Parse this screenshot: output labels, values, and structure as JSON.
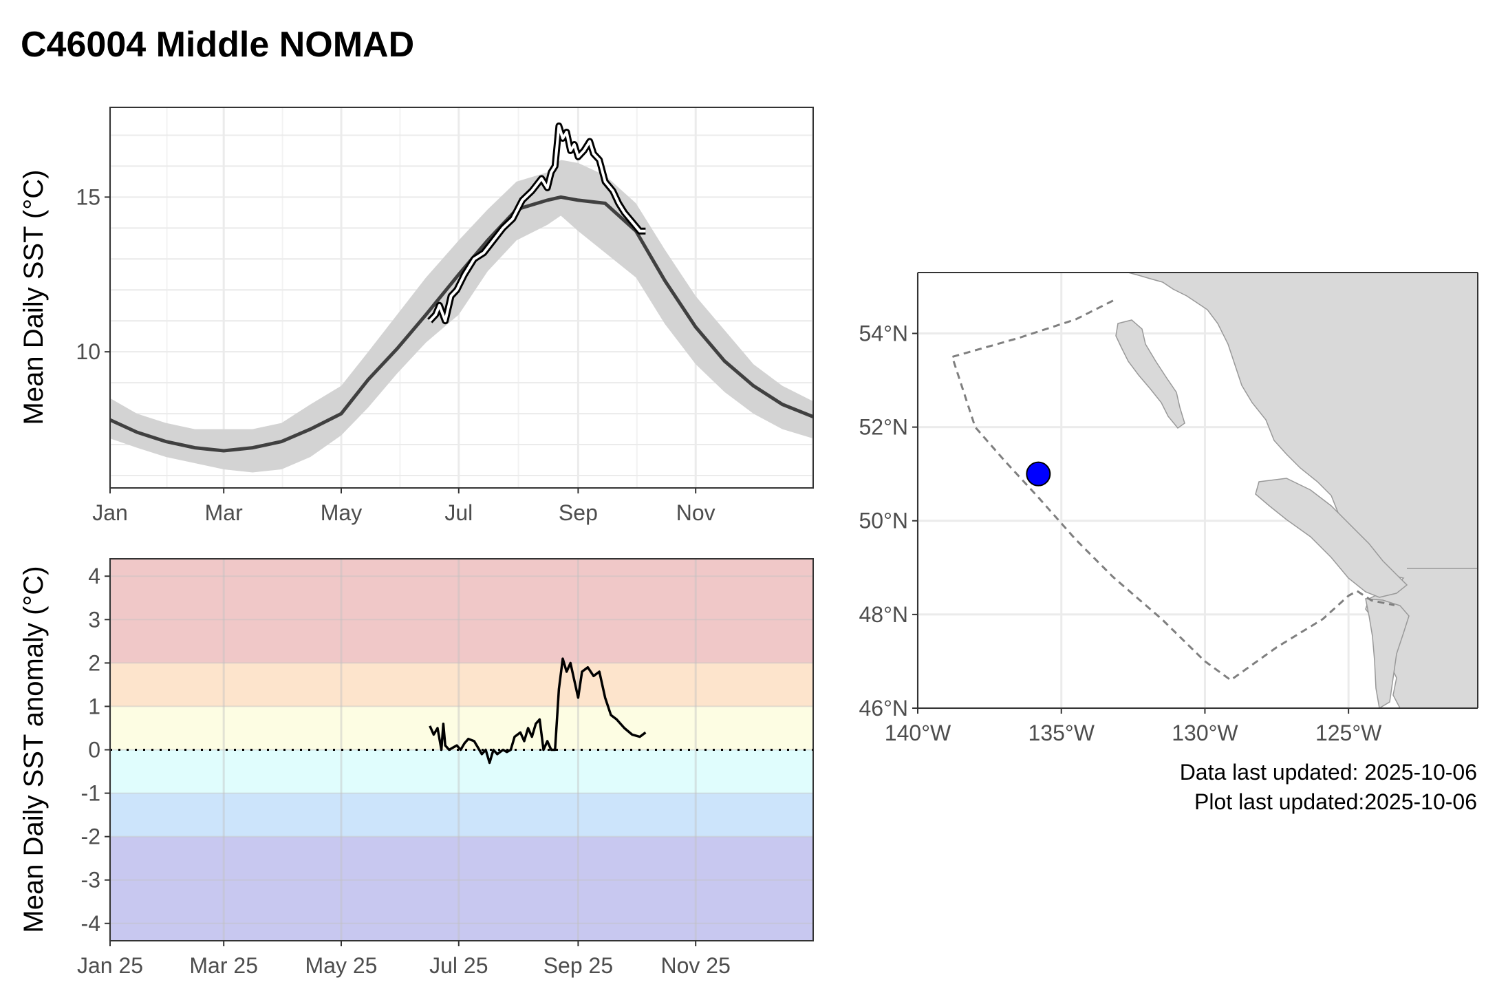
{
  "title": "C46004 Middle NOMAD",
  "notes": {
    "data_updated": "Data last updated: 2025-10-06",
    "plot_updated": "Plot last updated:2025-10-06"
  },
  "colors": {
    "climatology_line": "#404040",
    "climatology_band": "#d3d3d3",
    "current_line": "#000000",
    "current_halo": "#ffffff",
    "station_marker": "#0000ff",
    "land": "#d9d9d9",
    "boundary": "#7f7f7f",
    "anomaly_bands": [
      "#c8c8f0",
      "#cce4fb",
      "#e0fdfd",
      "#fdfde3",
      "#fde4cc",
      "#f0c8c8"
    ]
  },
  "chart_data": [
    {
      "type": "line",
      "ylabel": "Mean Daily SST (°C)",
      "xlabel": "",
      "x_ticks": [
        "Jan",
        "Mar",
        "May",
        "Jul",
        "Sep",
        "Nov"
      ],
      "x_tick_days": [
        1,
        60,
        121,
        182,
        244,
        305
      ],
      "y_ticks": [
        10,
        15
      ],
      "xlim": [
        1,
        366
      ],
      "ylim": [
        5.6,
        17.9
      ],
      "grid": true,
      "series": [
        {
          "role": "climatology_mean",
          "x": [
            1,
            15,
            30,
            45,
            60,
            75,
            90,
            105,
            121,
            135,
            150,
            165,
            182,
            197,
            212,
            228,
            235,
            244,
            258,
            274,
            289,
            305,
            320,
            335,
            350,
            366
          ],
          "y": [
            7.8,
            7.4,
            7.1,
            6.9,
            6.8,
            6.9,
            7.1,
            7.5,
            8.0,
            9.1,
            10.1,
            11.2,
            12.5,
            13.6,
            14.6,
            14.9,
            15.0,
            14.9,
            14.8,
            13.9,
            12.3,
            10.8,
            9.7,
            8.9,
            8.3,
            7.9
          ]
        },
        {
          "role": "climatology_band_upper",
          "x": [
            1,
            15,
            30,
            45,
            60,
            75,
            90,
            105,
            121,
            135,
            150,
            165,
            182,
            197,
            212,
            228,
            235,
            244,
            258,
            274,
            289,
            305,
            320,
            335,
            350,
            366
          ],
          "y": [
            8.5,
            8.0,
            7.7,
            7.5,
            7.5,
            7.5,
            7.7,
            8.3,
            8.9,
            10.0,
            11.2,
            12.4,
            13.6,
            14.6,
            15.5,
            15.8,
            16.2,
            16.1,
            15.7,
            14.8,
            13.3,
            11.8,
            10.7,
            9.6,
            8.9,
            8.4
          ]
        },
        {
          "role": "climatology_band_lower",
          "x": [
            1,
            15,
            30,
            45,
            60,
            75,
            90,
            105,
            121,
            135,
            150,
            165,
            182,
            197,
            212,
            228,
            235,
            244,
            258,
            274,
            289,
            305,
            320,
            335,
            350,
            366
          ],
          "y": [
            7.2,
            6.9,
            6.6,
            6.4,
            6.2,
            6.1,
            6.2,
            6.6,
            7.3,
            8.2,
            9.3,
            10.3,
            11.2,
            12.6,
            13.6,
            14.1,
            14.4,
            13.9,
            13.2,
            12.4,
            10.9,
            9.6,
            8.7,
            8.0,
            7.5,
            7.2
          ]
        },
        {
          "role": "current_year",
          "x": [
            167,
            170,
            172,
            175,
            178,
            181,
            185,
            190,
            195,
            200,
            205,
            210,
            215,
            220,
            225,
            228,
            230,
            232,
            234,
            236,
            238,
            240,
            242,
            244,
            247,
            250,
            252,
            255,
            258,
            262,
            265,
            268,
            272,
            276,
            279
          ],
          "y": [
            11.0,
            11.2,
            11.5,
            11.0,
            11.8,
            12.0,
            12.5,
            13.0,
            13.2,
            13.6,
            14.0,
            14.3,
            14.9,
            15.2,
            15.6,
            15.3,
            15.8,
            16.0,
            17.3,
            16.9,
            17.1,
            16.5,
            16.7,
            16.3,
            16.5,
            16.8,
            16.4,
            16.2,
            15.5,
            15.2,
            14.8,
            14.5,
            14.2,
            13.9,
            13.9
          ]
        }
      ]
    },
    {
      "type": "line",
      "ylabel": "Mean Daily SST anomaly (°C)",
      "xlabel": "",
      "x_ticks": [
        "Jan 25",
        "Mar 25",
        "May 25",
        "Jul 25",
        "Sep 25",
        "Nov 25"
      ],
      "x_tick_days": [
        1,
        60,
        121,
        182,
        244,
        305
      ],
      "y_ticks": [
        "-4",
        "-3",
        "-2",
        "-1",
        "0",
        "1",
        "2",
        "3",
        "4"
      ],
      "xlim": [
        1,
        366
      ],
      "ylim": [
        -4.4,
        4.4
      ],
      "reference_line": 0,
      "bands": [
        [
          -4.4,
          -2
        ],
        [
          -2,
          -1
        ],
        [
          -1,
          0
        ],
        [
          0,
          1
        ],
        [
          1,
          2
        ],
        [
          2,
          4.4
        ]
      ],
      "series": [
        {
          "role": "anomaly",
          "x": [
            167,
            169,
            171,
            173,
            174,
            175,
            177,
            179,
            181,
            183,
            185,
            187,
            190,
            192,
            194,
            196,
            198,
            200,
            202,
            205,
            207,
            209,
            211,
            214,
            216,
            218,
            220,
            222,
            224,
            226,
            228,
            230,
            232,
            234,
            236,
            238,
            240,
            242,
            244,
            246,
            249,
            252,
            255,
            258,
            261,
            264,
            268,
            272,
            276,
            279
          ],
          "y": [
            0.55,
            0.35,
            0.5,
            0.0,
            0.6,
            0.1,
            0.0,
            0.05,
            0.1,
            0.0,
            0.15,
            0.25,
            0.2,
            0.05,
            -0.1,
            0.0,
            -0.3,
            0.0,
            -0.1,
            0.0,
            -0.05,
            0.0,
            0.3,
            0.4,
            0.2,
            0.5,
            0.3,
            0.6,
            0.7,
            0.0,
            0.2,
            0.0,
            0.0,
            1.4,
            2.1,
            1.8,
            2.0,
            1.6,
            1.2,
            1.8,
            1.9,
            1.7,
            1.8,
            1.2,
            0.8,
            0.7,
            0.5,
            0.35,
            0.3,
            0.4
          ]
        }
      ]
    }
  ],
  "map": {
    "lon_ticks": [
      "140°W",
      "135°W",
      "130°W",
      "125°W"
    ],
    "lon_values": [
      -140,
      -135,
      -130,
      -125
    ],
    "lat_ticks": [
      "46°N",
      "48°N",
      "50°N",
      "52°N",
      "54°N"
    ],
    "lat_values": [
      46,
      48,
      50,
      52,
      54
    ],
    "lon_range": [
      -140,
      -120.5
    ],
    "lat_range": [
      46,
      55.3
    ],
    "station": {
      "lon": -135.8,
      "lat": 51.0
    },
    "boundary": [
      [
        -133.2,
        54.7
      ],
      [
        -134.5,
        54.3
      ],
      [
        -136.5,
        53.9
      ],
      [
        -138.8,
        53.5
      ],
      [
        -138.0,
        52.0
      ],
      [
        -137.0,
        51.3
      ],
      [
        -135.8,
        50.5
      ],
      [
        -134.5,
        49.6
      ],
      [
        -133.2,
        48.8
      ],
      [
        -131.5,
        47.9
      ],
      [
        -130.0,
        47.0
      ],
      [
        -129.1,
        46.6
      ],
      [
        -127.5,
        47.3
      ],
      [
        -125.9,
        47.9
      ],
      [
        -125.0,
        48.4
      ],
      [
        -124.7,
        48.5
      ],
      [
        -124.2,
        48.3
      ],
      [
        -123.4,
        48.2
      ]
    ]
  }
}
